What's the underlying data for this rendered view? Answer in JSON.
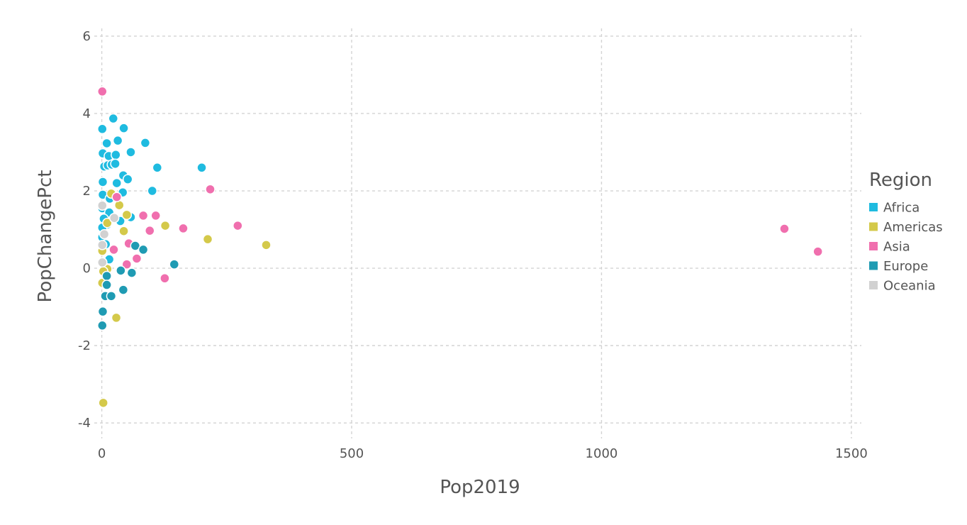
{
  "chart_data": {
    "type": "scatter",
    "title": "",
    "xlabel": "Pop2019",
    "ylabel": "PopChangePct",
    "xlim": [
      -15,
      1520
    ],
    "ylim": [
      -4.4,
      6.2
    ],
    "x_ticks": [
      0,
      500,
      1000,
      1500
    ],
    "y_ticks": [
      -4,
      -2,
      0,
      2,
      4,
      6
    ],
    "grid": true,
    "legend": {
      "title": "Region",
      "placement": "right"
    },
    "series": [
      {
        "name": "Africa",
        "color": "#1fbbe0",
        "points": [
          [
            1,
            3.6
          ],
          [
            23,
            3.87
          ],
          [
            44,
            3.62
          ],
          [
            87,
            3.24
          ],
          [
            10,
            3.23
          ],
          [
            32,
            3.3
          ],
          [
            2,
            2.97
          ],
          [
            58,
            3.0
          ],
          [
            14,
            2.9
          ],
          [
            28,
            2.93
          ],
          [
            5,
            2.63
          ],
          [
            12,
            2.66
          ],
          [
            20,
            2.68
          ],
          [
            27,
            2.7
          ],
          [
            111,
            2.6
          ],
          [
            200,
            2.6
          ],
          [
            2,
            2.23
          ],
          [
            43,
            2.4
          ],
          [
            52,
            2.3
          ],
          [
            30,
            2.2
          ],
          [
            101,
            2.0
          ],
          [
            42,
            1.96
          ],
          [
            2,
            1.9
          ],
          [
            16,
            1.8
          ],
          [
            1,
            1.55
          ],
          [
            15,
            1.44
          ],
          [
            58,
            1.32
          ],
          [
            4,
            1.28
          ],
          [
            37,
            1.22
          ],
          [
            11,
            1.13
          ],
          [
            1,
            1.05
          ],
          [
            1,
            0.8
          ],
          [
            8,
            0.62
          ],
          [
            15,
            0.23
          ]
        ]
      },
      {
        "name": "Americas",
        "color": "#d4c94a",
        "points": [
          [
            19,
            1.93
          ],
          [
            35,
            1.63
          ],
          [
            11,
            1.17
          ],
          [
            127,
            1.1
          ],
          [
            44,
            0.96
          ],
          [
            212,
            0.75
          ],
          [
            329,
            0.6
          ],
          [
            1,
            0.45
          ],
          [
            1,
            0.15
          ],
          [
            11,
            -0.02
          ],
          [
            3,
            -0.08
          ],
          [
            1,
            -0.38
          ],
          [
            29,
            -1.28
          ],
          [
            3,
            -3.48
          ],
          [
            50,
            1.38
          ]
        ]
      },
      {
        "name": "Asia",
        "color": "#f06fae",
        "points": [
          [
            1,
            4.57
          ],
          [
            217,
            2.04
          ],
          [
            30,
            1.84
          ],
          [
            83,
            1.36
          ],
          [
            108,
            1.36
          ],
          [
            272,
            1.1
          ],
          [
            163,
            1.03
          ],
          [
            96,
            0.97
          ],
          [
            1366,
            1.02
          ],
          [
            1433,
            0.43
          ],
          [
            54,
            0.64
          ],
          [
            70,
            0.25
          ],
          [
            24,
            0.48
          ],
          [
            50,
            0.1
          ],
          [
            126,
            -0.26
          ]
        ]
      },
      {
        "name": "Europe",
        "color": "#1f9bb3",
        "points": [
          [
            67,
            0.58
          ],
          [
            83,
            0.48
          ],
          [
            145,
            0.1
          ],
          [
            38,
            -0.06
          ],
          [
            60,
            -0.12
          ],
          [
            10,
            -0.2
          ],
          [
            43,
            -0.56
          ],
          [
            7,
            -0.72
          ],
          [
            19,
            -0.72
          ],
          [
            2,
            -1.12
          ],
          [
            1,
            -1.48
          ],
          [
            10,
            -0.43
          ]
        ]
      },
      {
        "name": "Oceania",
        "color": "#d1d1d1",
        "points": [
          [
            25,
            1.3
          ],
          [
            5,
            0.88
          ],
          [
            1,
            0.6
          ],
          [
            1,
            1.62
          ],
          [
            1,
            0.15
          ]
        ]
      }
    ]
  }
}
